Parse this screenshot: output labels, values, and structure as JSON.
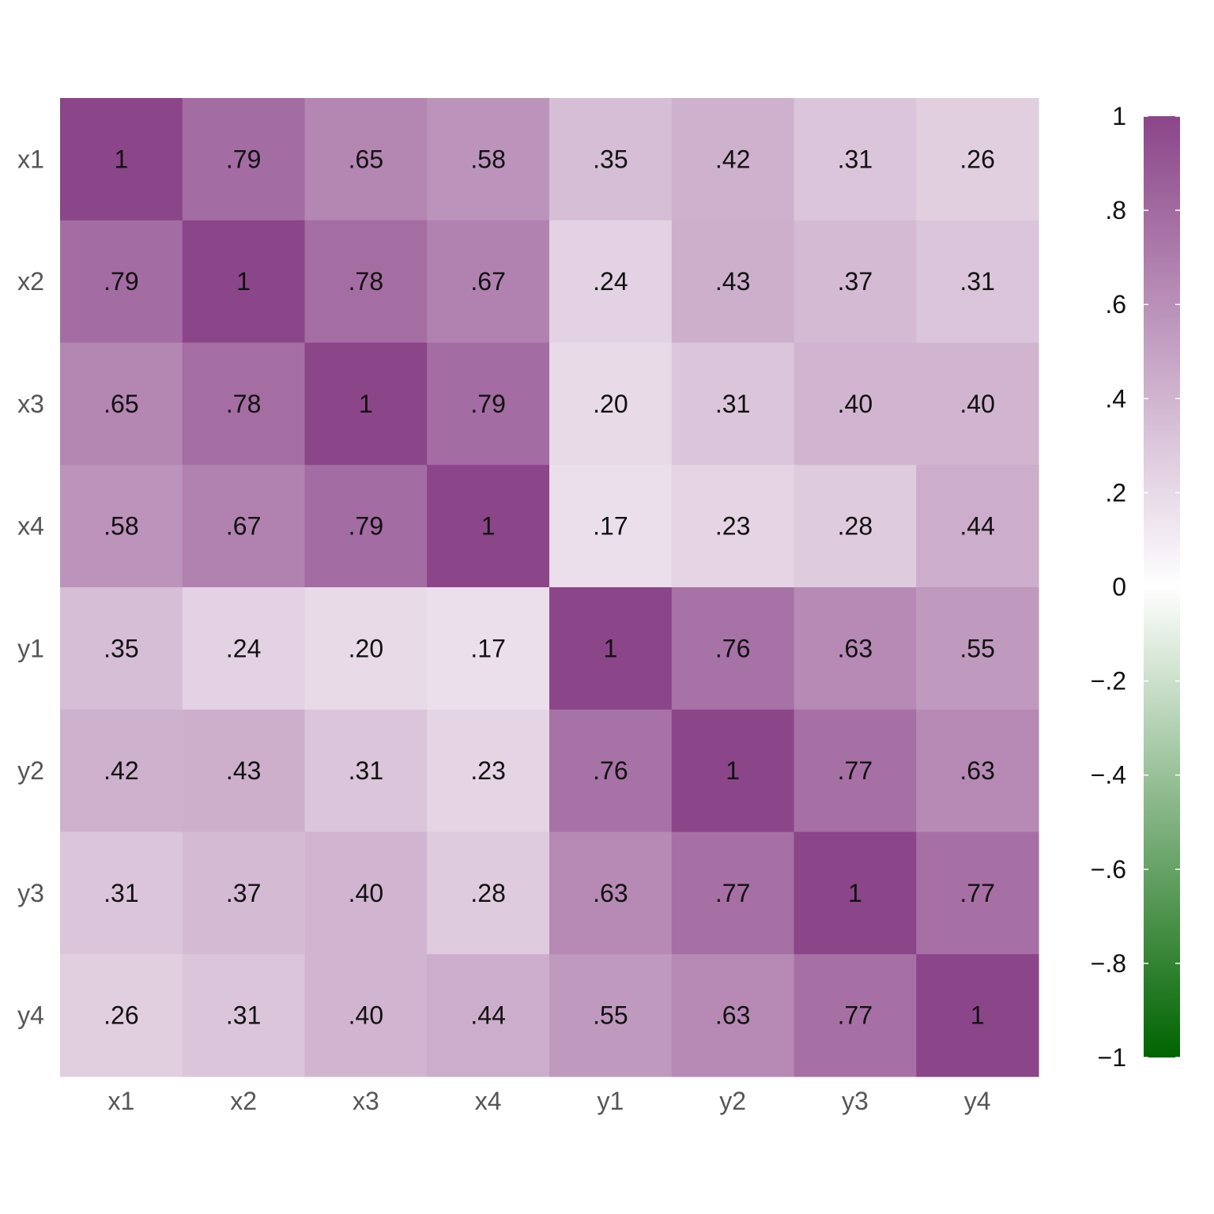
{
  "chart_data": {
    "type": "heatmap",
    "rows": [
      "x1",
      "x2",
      "x3",
      "x4",
      "y1",
      "y2",
      "y3",
      "y4"
    ],
    "columns": [
      "x1",
      "x2",
      "x3",
      "x4",
      "y1",
      "y2",
      "y3",
      "y4"
    ],
    "values": [
      [
        1,
        0.79,
        0.65,
        0.58,
        0.35,
        0.42,
        0.31,
        0.26
      ],
      [
        0.79,
        1,
        0.78,
        0.67,
        0.24,
        0.43,
        0.37,
        0.31
      ],
      [
        0.65,
        0.78,
        1,
        0.79,
        0.2,
        0.31,
        0.4,
        0.4
      ],
      [
        0.58,
        0.67,
        0.79,
        1,
        0.17,
        0.23,
        0.28,
        0.44
      ],
      [
        0.35,
        0.24,
        0.2,
        0.17,
        1,
        0.76,
        0.63,
        0.55
      ],
      [
        0.42,
        0.43,
        0.31,
        0.23,
        0.76,
        1,
        0.77,
        0.63
      ],
      [
        0.31,
        0.37,
        0.4,
        0.28,
        0.63,
        0.77,
        1,
        0.77
      ],
      [
        0.26,
        0.31,
        0.4,
        0.44,
        0.55,
        0.63,
        0.77,
        1
      ]
    ],
    "cell_labels": [
      [
        "1",
        ".79",
        ".65",
        ".58",
        ".35",
        ".42",
        ".31",
        ".26"
      ],
      [
        ".79",
        "1",
        ".78",
        ".67",
        ".24",
        ".43",
        ".37",
        ".31"
      ],
      [
        ".65",
        ".78",
        "1",
        ".79",
        ".20",
        ".31",
        ".40",
        ".40"
      ],
      [
        ".58",
        ".67",
        ".79",
        "1",
        ".17",
        ".23",
        ".28",
        ".44"
      ],
      [
        ".35",
        ".24",
        ".20",
        ".17",
        "1",
        ".76",
        ".63",
        ".55"
      ],
      [
        ".42",
        ".43",
        ".31",
        ".23",
        ".76",
        "1",
        ".77",
        ".63"
      ],
      [
        ".31",
        ".37",
        ".40",
        ".28",
        ".63",
        ".77",
        "1",
        ".77"
      ],
      [
        ".26",
        ".31",
        ".40",
        ".44",
        ".55",
        ".63",
        ".77",
        "1"
      ]
    ],
    "color_scale": {
      "min": -1,
      "max": 1,
      "low_color": "#006400",
      "mid_color": "#ffffff",
      "high_color": "#8b4589"
    },
    "legend": {
      "position": "right",
      "ticks": [
        1,
        0.8,
        0.6,
        0.4,
        0.2,
        0,
        -0.2,
        -0.4,
        -0.6,
        -0.8,
        -1
      ],
      "tick_labels": [
        "1",
        ".8",
        ".6",
        ".4",
        ".2",
        "0",
        "−.2",
        "−.4",
        "−.6",
        "−.8",
        "−1"
      ]
    },
    "grid": false
  }
}
